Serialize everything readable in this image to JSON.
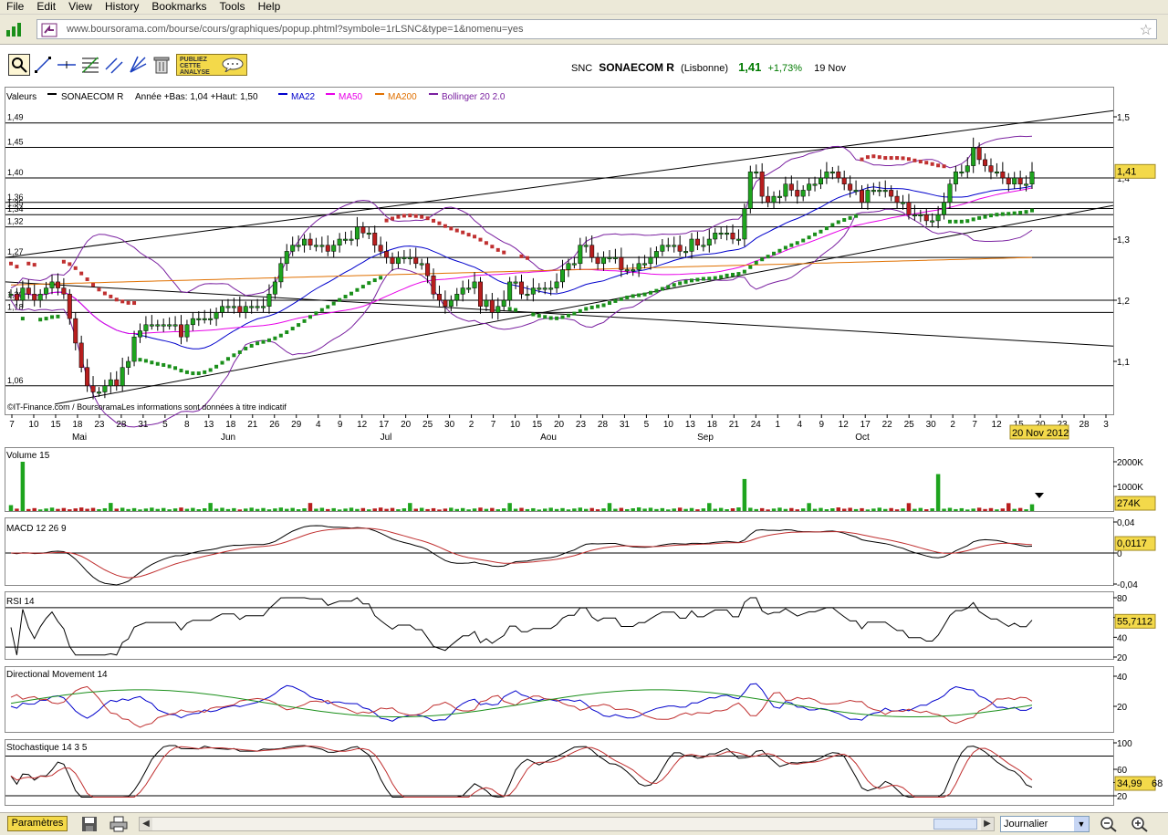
{
  "menu": [
    "File",
    "Edit",
    "View",
    "History",
    "Bookmarks",
    "Tools",
    "Help"
  ],
  "address": {
    "url": "www.boursorama.com/bourse/cours/graphiques/popup.phtml?symbole=1rLSNC&type=1&nomenu=yes"
  },
  "toolbar": {
    "tools": [
      "zoom-icon",
      "trendline-icon",
      "horizontal-line-icon",
      "fibonacci-icon",
      "parallel-channel-icon",
      "fan-icon",
      "trash-icon"
    ],
    "publish_label": [
      "PUBLIEZ",
      "CETTE",
      "ANALYSE"
    ]
  },
  "quote": {
    "symbol": "SNC",
    "name": "SONAECOM R",
    "exchange": "(Lisbonne)",
    "price": "1,41",
    "change": "+1,73%",
    "date": "19 Nov"
  },
  "legend": {
    "valeurs": "Valeurs",
    "series_name": "SONAECOM R",
    "range": "Année +Bas: 1,04 +Haut: 1,50",
    "indicators": [
      {
        "name": "MA22",
        "color": "#0000cc"
      },
      {
        "name": "MA50",
        "color": "#e800e8"
      },
      {
        "name": "MA200",
        "color": "#e07000"
      },
      {
        "name": "Bollinger 20 2.0",
        "color": "#7a20a0"
      }
    ]
  },
  "copyright": "©IT-Finance.com / BoursoramaLes informations sont données à titre indicatif",
  "xaxis": {
    "days": [
      "7",
      "10",
      "15",
      "18",
      "23",
      "28",
      "31",
      "5",
      "8",
      "13",
      "18",
      "21",
      "26",
      "29",
      "4",
      "9",
      "12",
      "17",
      "20",
      "25",
      "30",
      "2",
      "7",
      "10",
      "15",
      "20",
      "23",
      "28",
      "31",
      "5",
      "10",
      "13",
      "18",
      "21",
      "24",
      "1",
      "4",
      "9",
      "12",
      "17",
      "22",
      "25",
      "30",
      "2",
      "7",
      "12",
      "15",
      "20",
      "23",
      "28",
      "3"
    ],
    "months": [
      "Mai",
      "Jun",
      "Jul",
      "Aou",
      "Sep",
      "Oct"
    ],
    "date_label": "20 Nov 2012"
  },
  "price_panel": {
    "left_levels": [
      "1,49",
      "1,45",
      "1,40",
      "1,36",
      "1,35",
      "1,34",
      "1,32",
      "1,27",
      "1,20",
      "1,18",
      "1,06"
    ],
    "right_ticks": [
      "1,5",
      "1,4",
      "1,3",
      "1,2",
      "1,1"
    ],
    "last_label": "1,41"
  },
  "volume_panel": {
    "title": "Volume 15",
    "ticks": [
      "2000K",
      "1000K"
    ],
    "last_label": "274K"
  },
  "macd_panel": {
    "title": "MACD 12 26 9",
    "ticks": [
      "0,04",
      "0",
      "-0,04"
    ],
    "last_label": "0,0117"
  },
  "rsi_panel": {
    "title": "RSI 14",
    "ticks": [
      "80",
      "60",
      "40",
      "20"
    ],
    "last_label": "55,7112"
  },
  "dm_panel": {
    "title": "Directional Movement 14",
    "ticks": [
      "40",
      "20"
    ]
  },
  "stoch_panel": {
    "title": "Stochastique 14 3 5",
    "ticks": [
      "100",
      "60",
      "40",
      "20"
    ],
    "last_label": "34,99",
    "last_label_hidden": "68"
  },
  "statusbar": {
    "params_label": "Paramètres",
    "period": "Journalier"
  },
  "chart_data": {
    "type": "candlestick",
    "title": "SONAECOM R",
    "subtitle": "Année +Bas: 1,04 +Haut: 1,50",
    "y_range": [
      1.02,
      1.55
    ],
    "levels": [
      1.49,
      1.45,
      1.4,
      1.36,
      1.35,
      1.34,
      1.32,
      1.27,
      1.2,
      1.18,
      1.06
    ],
    "closes": [
      1.21,
      1.2,
      1.22,
      1.21,
      1.2,
      1.21,
      1.22,
      1.23,
      1.22,
      1.21,
      1.17,
      1.13,
      1.09,
      1.06,
      1.05,
      1.05,
      1.06,
      1.07,
      1.06,
      1.09,
      1.1,
      1.14,
      1.15,
      1.16,
      1.16,
      1.16,
      1.16,
      1.16,
      1.16,
      1.14,
      1.16,
      1.17,
      1.17,
      1.17,
      1.17,
      1.18,
      1.19,
      1.19,
      1.19,
      1.18,
      1.19,
      1.19,
      1.19,
      1.19,
      1.21,
      1.23,
      1.26,
      1.28,
      1.29,
      1.29,
      1.3,
      1.29,
      1.29,
      1.29,
      1.28,
      1.29,
      1.3,
      1.3,
      1.3,
      1.32,
      1.31,
      1.31,
      1.29,
      1.28,
      1.27,
      1.26,
      1.27,
      1.27,
      1.27,
      1.26,
      1.26,
      1.24,
      1.21,
      1.2,
      1.19,
      1.2,
      1.21,
      1.22,
      1.22,
      1.23,
      1.19,
      1.2,
      1.18,
      1.19,
      1.2,
      1.23,
      1.23,
      1.21,
      1.21,
      1.22,
      1.22,
      1.22,
      1.22,
      1.23,
      1.25,
      1.26,
      1.26,
      1.29,
      1.29,
      1.27,
      1.26,
      1.27,
      1.27,
      1.27,
      1.25,
      1.25,
      1.25,
      1.26,
      1.26,
      1.27,
      1.28,
      1.29,
      1.29,
      1.29,
      1.28,
      1.28,
      1.3,
      1.29,
      1.29,
      1.3,
      1.31,
      1.31,
      1.31,
      1.3,
      1.3,
      1.35,
      1.41,
      1.41,
      1.37,
      1.36,
      1.37,
      1.37,
      1.39,
      1.38,
      1.37,
      1.38,
      1.39,
      1.39,
      1.4,
      1.41,
      1.41,
      1.4,
      1.39,
      1.38,
      1.38,
      1.36,
      1.38,
      1.38,
      1.38,
      1.38,
      1.37,
      1.36,
      1.36,
      1.34,
      1.34,
      1.34,
      1.33,
      1.33,
      1.34,
      1.36,
      1.39,
      1.41,
      1.41,
      1.42,
      1.45,
      1.43,
      1.42,
      1.41,
      1.41,
      1.4,
      1.39,
      1.4,
      1.39,
      1.39,
      1.41
    ],
    "volume_peaks": {
      "may_start": 2000,
      "sep_21": 1300,
      "nov_1": 1500,
      "last": 274
    },
    "macd_last": 0.0117,
    "rsi_last": 55.7112,
    "stoch_last": 34.99
  }
}
